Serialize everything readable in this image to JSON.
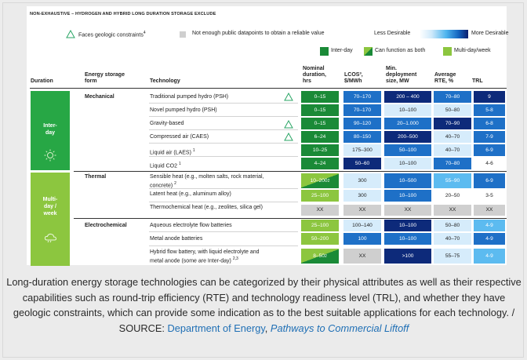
{
  "heading": "NON-EXHAUSTIVE – HYDROGEN AND HYBRID LONG DURATION STORAGE EXCLUDE",
  "legend": {
    "geologic": "Faces geologic constraints",
    "geologic_sup": "4",
    "not_enough": "Not enough public datapoints to obtain a reliable value",
    "less_desirable": "Less Desirable",
    "more_desirable": "More Desirable",
    "inter_day": "Inter-day",
    "both": "Can function as both",
    "multi_day": "Multi-day/week"
  },
  "headers": {
    "duration": "Duration",
    "form_1": "Energy storage",
    "form_2": "form",
    "technology": "Technology",
    "nominal_1": "Nominal",
    "nominal_2": "duration,",
    "nominal_3": "hrs",
    "lcos_1": "LCOS³,",
    "lcos_2": "$/MWh",
    "min_1": "Min.",
    "min_2": "deployment",
    "min_3": "size, MW",
    "rte_1": "Average",
    "rte_2": "RTE, %",
    "trl": "TRL"
  },
  "groups": {
    "inter_day_1": "Inter-",
    "inter_day_2": "day",
    "multi_1": "Multi-",
    "multi_2": "day /",
    "multi_3": "week"
  },
  "forms": {
    "mechanical": "Mechanical",
    "thermal": "Thermal",
    "electrochemical": "Electrochemical"
  },
  "rows": [
    {
      "tech": "Traditional pumped hydro (PSH)",
      "nominal": "0–15",
      "lcos": "70–170",
      "min": "200 – 400",
      "rte": "70–80",
      "trl": "9"
    },
    {
      "tech": "Novel pumped hydro (PSH)",
      "nominal": "0–15",
      "lcos": "70–170",
      "min": "10–100",
      "rte": "50–80",
      "trl": "5-8"
    },
    {
      "tech": "Gravity-based",
      "nominal": "0–15",
      "lcos": "90–120",
      "min": "20–1.000",
      "rte": "70–90",
      "trl": "6-8"
    },
    {
      "tech": "Compressed air (CAES)",
      "nominal": "6–24",
      "lcos": "80–150",
      "min": "200–500",
      "rte": "40–70",
      "trl": "7-9"
    },
    {
      "tech": "Liquid air (LAES)",
      "tech_sup": "1",
      "nominal": "10–25",
      "lcos": "175–300",
      "min": "50–100",
      "rte": "40–70",
      "trl": "6-9"
    },
    {
      "tech": "Liquid CO2",
      "tech_sup": "1",
      "nominal": "4–24",
      "lcos": "50–60",
      "min": "10–100",
      "rte": "70–80",
      "trl": "4-6"
    },
    {
      "tech_1": "Sensible heat (e.g., molten salts, rock material,",
      "tech_2": "concrete)",
      "tech_sup": "2",
      "nominal": "10–200",
      "nominal_sup": "2",
      "lcos": "300",
      "min": "10–500",
      "rte": "55–90",
      "trl": "6-9"
    },
    {
      "tech": "Latent heat (e.g., aluminum alloy)",
      "nominal": "25–100",
      "lcos": "300",
      "min": "10–100",
      "rte": "20–50",
      "trl": "3-5"
    },
    {
      "tech": "Thermochemical heat (e.g., zeolites, silica gel)",
      "nominal": "XX",
      "lcos": "XX",
      "min": "XX",
      "rte": "XX",
      "trl": "XX"
    },
    {
      "tech": "Aqueous electrolyte flow batteries",
      "nominal": "25–100",
      "lcos": "100–140",
      "min": "10–100",
      "rte": "50–80",
      "trl": "4-9"
    },
    {
      "tech": "Metal anode batteries",
      "nominal": "50–200",
      "lcos": "100",
      "min": "10–100",
      "rte": "40–70",
      "trl": "4-9"
    },
    {
      "tech_1": "Hybrid flow battery, with liquid electrolyte and",
      "tech_2": "metal anode (some are Inter-day)",
      "tech_sup": "2,3",
      "nominal": "8–50",
      "nominal_sup": "2",
      "lcos": "XX",
      "min": ">100",
      "rte": "55–75",
      "trl": "4-9"
    }
  ],
  "caption": {
    "text": "Long-duration energy storage technologies can be categorized by their physical attributes as well as their respective capabilities such as round-trip efficiency (RTE) and technology readiness level (TRL), and whether they have geologic constraints, which can provide some indication as to the best suitable applications for each technology. / SOURCE: ",
    "source_1": "Department of Energy",
    "sep": ", ",
    "source_2": "Pathways to Commercial Liftoff"
  }
}
